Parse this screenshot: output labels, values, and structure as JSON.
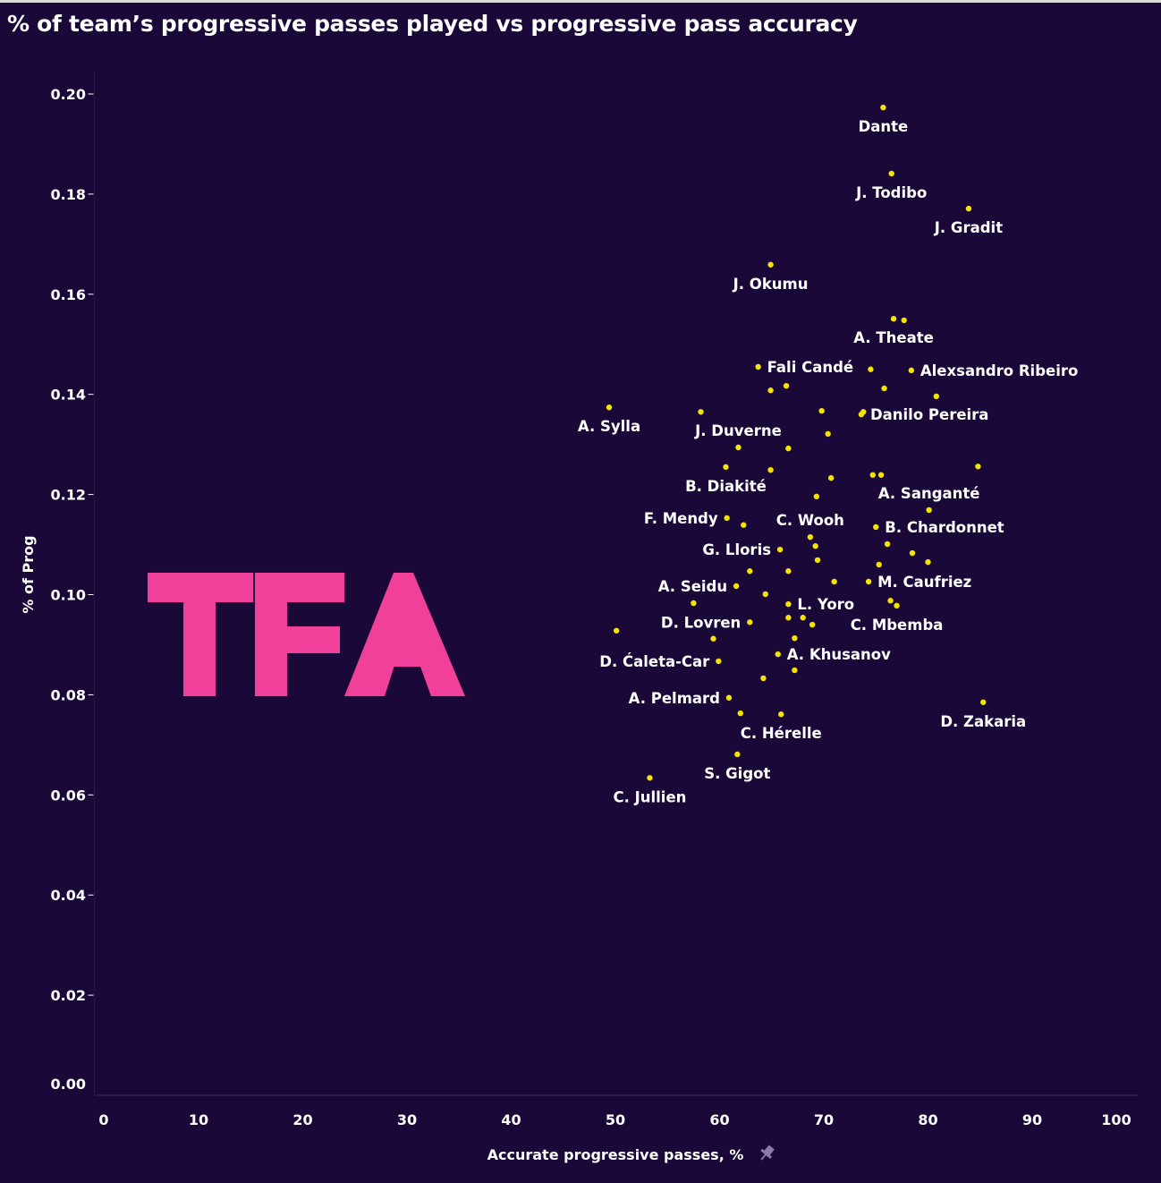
{
  "chart_data": {
    "type": "scatter",
    "title": "% of team’s progressive passes played vs  progressive pass accuracy",
    "xlabel": "Accurate progressive passes, %",
    "ylabel": "% of Prog",
    "xlim": [
      0,
      100
    ],
    "ylim": [
      0,
      0.2
    ],
    "x_ticks": [
      "0",
      "10",
      "20",
      "30",
      "40",
      "50",
      "60",
      "70",
      "80",
      "90",
      "100"
    ],
    "y_ticks": [
      "0.00",
      "0.02",
      "0.04",
      "0.06",
      "0.08",
      "0.10",
      "0.12",
      "0.14",
      "0.16",
      "0.18",
      "0.20"
    ],
    "grid": false,
    "point_color": "#f5e400",
    "points": [
      {
        "x": 75.7,
        "y": 0.1973,
        "label": "Dante",
        "pos": "below"
      },
      {
        "x": 76.5,
        "y": 0.1841,
        "label": "J. Todibo",
        "pos": "below"
      },
      {
        "x": 83.9,
        "y": 0.1771,
        "label": "J. Gradit",
        "pos": "below"
      },
      {
        "x": 64.9,
        "y": 0.1659,
        "label": "J. Okumu",
        "pos": "below"
      },
      {
        "x": 76.7,
        "y": 0.1551,
        "label": "A. Theate",
        "pos": "below"
      },
      {
        "x": 77.7,
        "y": 0.1548
      },
      {
        "x": 63.7,
        "y": 0.1455,
        "label": "Fali Candé",
        "pos": "right"
      },
      {
        "x": 74.5,
        "y": 0.145
      },
      {
        "x": 78.4,
        "y": 0.1448,
        "label": "Alexsandro Ribeiro",
        "pos": "right"
      },
      {
        "x": 64.9,
        "y": 0.1408
      },
      {
        "x": 66.4,
        "y": 0.1417
      },
      {
        "x": 75.8,
        "y": 0.1412
      },
      {
        "x": 80.8,
        "y": 0.1396
      },
      {
        "x": 49.4,
        "y": 0.1374,
        "label": "A. Sylla",
        "pos": "below"
      },
      {
        "x": 58.2,
        "y": 0.1365
      },
      {
        "x": 69.8,
        "y": 0.1367
      },
      {
        "x": 73.8,
        "y": 0.1365
      },
      {
        "x": 73.6,
        "y": 0.136,
        "label": "Danilo Pereira",
        "pos": "right"
      },
      {
        "x": 70.4,
        "y": 0.1321
      },
      {
        "x": 61.8,
        "y": 0.1294,
        "label": "J. Duverne",
        "pos": "above"
      },
      {
        "x": 66.6,
        "y": 0.1292
      },
      {
        "x": 60.6,
        "y": 0.1255,
        "label": "B. Diakité",
        "pos": "below"
      },
      {
        "x": 64.9,
        "y": 0.1249
      },
      {
        "x": 84.8,
        "y": 0.1256
      },
      {
        "x": 70.7,
        "y": 0.1233
      },
      {
        "x": 74.7,
        "y": 0.1239
      },
      {
        "x": 75.5,
        "y": 0.1239
      },
      {
        "x": 69.3,
        "y": 0.1196
      },
      {
        "x": 80.1,
        "y": 0.1169,
        "label": "A. Sanganté",
        "pos": "above"
      },
      {
        "x": 60.7,
        "y": 0.1153,
        "label": "F. Mendy",
        "pos": "left"
      },
      {
        "x": 62.3,
        "y": 0.1139
      },
      {
        "x": 75.0,
        "y": 0.1135,
        "label": "B. Chardonnet",
        "pos": "right"
      },
      {
        "x": 68.7,
        "y": 0.1115,
        "label": "C. Wooh",
        "pos": "above"
      },
      {
        "x": 69.2,
        "y": 0.1097
      },
      {
        "x": 76.1,
        "y": 0.1101
      },
      {
        "x": 65.8,
        "y": 0.109,
        "label": "G. Lloris",
        "pos": "left"
      },
      {
        "x": 69.4,
        "y": 0.1069
      },
      {
        "x": 78.5,
        "y": 0.1083
      },
      {
        "x": 80.0,
        "y": 0.1065
      },
      {
        "x": 75.3,
        "y": 0.106
      },
      {
        "x": 62.9,
        "y": 0.1047
      },
      {
        "x": 66.6,
        "y": 0.1047
      },
      {
        "x": 71.0,
        "y": 0.1026
      },
      {
        "x": 74.3,
        "y": 0.1026,
        "label": "M. Caufriez",
        "pos": "right"
      },
      {
        "x": 61.6,
        "y": 0.1017,
        "label": "A. Seidu",
        "pos": "left"
      },
      {
        "x": 64.4,
        "y": 0.1001
      },
      {
        "x": 66.6,
        "y": 0.0981,
        "label": "L. Yoro",
        "pos": "right"
      },
      {
        "x": 76.4,
        "y": 0.0988
      },
      {
        "x": 77.0,
        "y": 0.0978,
        "label": "C. Mbemba",
        "pos": "below"
      },
      {
        "x": 57.5,
        "y": 0.0983
      },
      {
        "x": 66.6,
        "y": 0.0954
      },
      {
        "x": 68.0,
        "y": 0.0954
      },
      {
        "x": 68.9,
        "y": 0.094
      },
      {
        "x": 62.9,
        "y": 0.0945,
        "label": "D. Lovren",
        "pos": "left"
      },
      {
        "x": 59.4,
        "y": 0.0912
      },
      {
        "x": 50.1,
        "y": 0.0928
      },
      {
        "x": 67.2,
        "y": 0.0913
      },
      {
        "x": 65.6,
        "y": 0.0881,
        "label": "A. Khusanov",
        "pos": "right"
      },
      {
        "x": 59.9,
        "y": 0.0867,
        "label": "D. Ćaleta-Car",
        "pos": "left"
      },
      {
        "x": 67.2,
        "y": 0.0849
      },
      {
        "x": 64.2,
        "y": 0.0833
      },
      {
        "x": 60.9,
        "y": 0.0794,
        "label": "A. Pelmard",
        "pos": "left"
      },
      {
        "x": 85.3,
        "y": 0.0785,
        "label": "D. Zakaria",
        "pos": "below"
      },
      {
        "x": 62.0,
        "y": 0.0763
      },
      {
        "x": 65.9,
        "y": 0.0761,
        "label": "C. Hérelle",
        "pos": "below"
      },
      {
        "x": 61.7,
        "y": 0.0681,
        "label": "S. Gigot",
        "pos": "below"
      },
      {
        "x": 53.3,
        "y": 0.0634,
        "label": "C. Jullien",
        "pos": "below"
      }
    ]
  },
  "logo": {
    "text": "TFA",
    "color": "#f0409a"
  },
  "pin_icon": "pin-icon"
}
